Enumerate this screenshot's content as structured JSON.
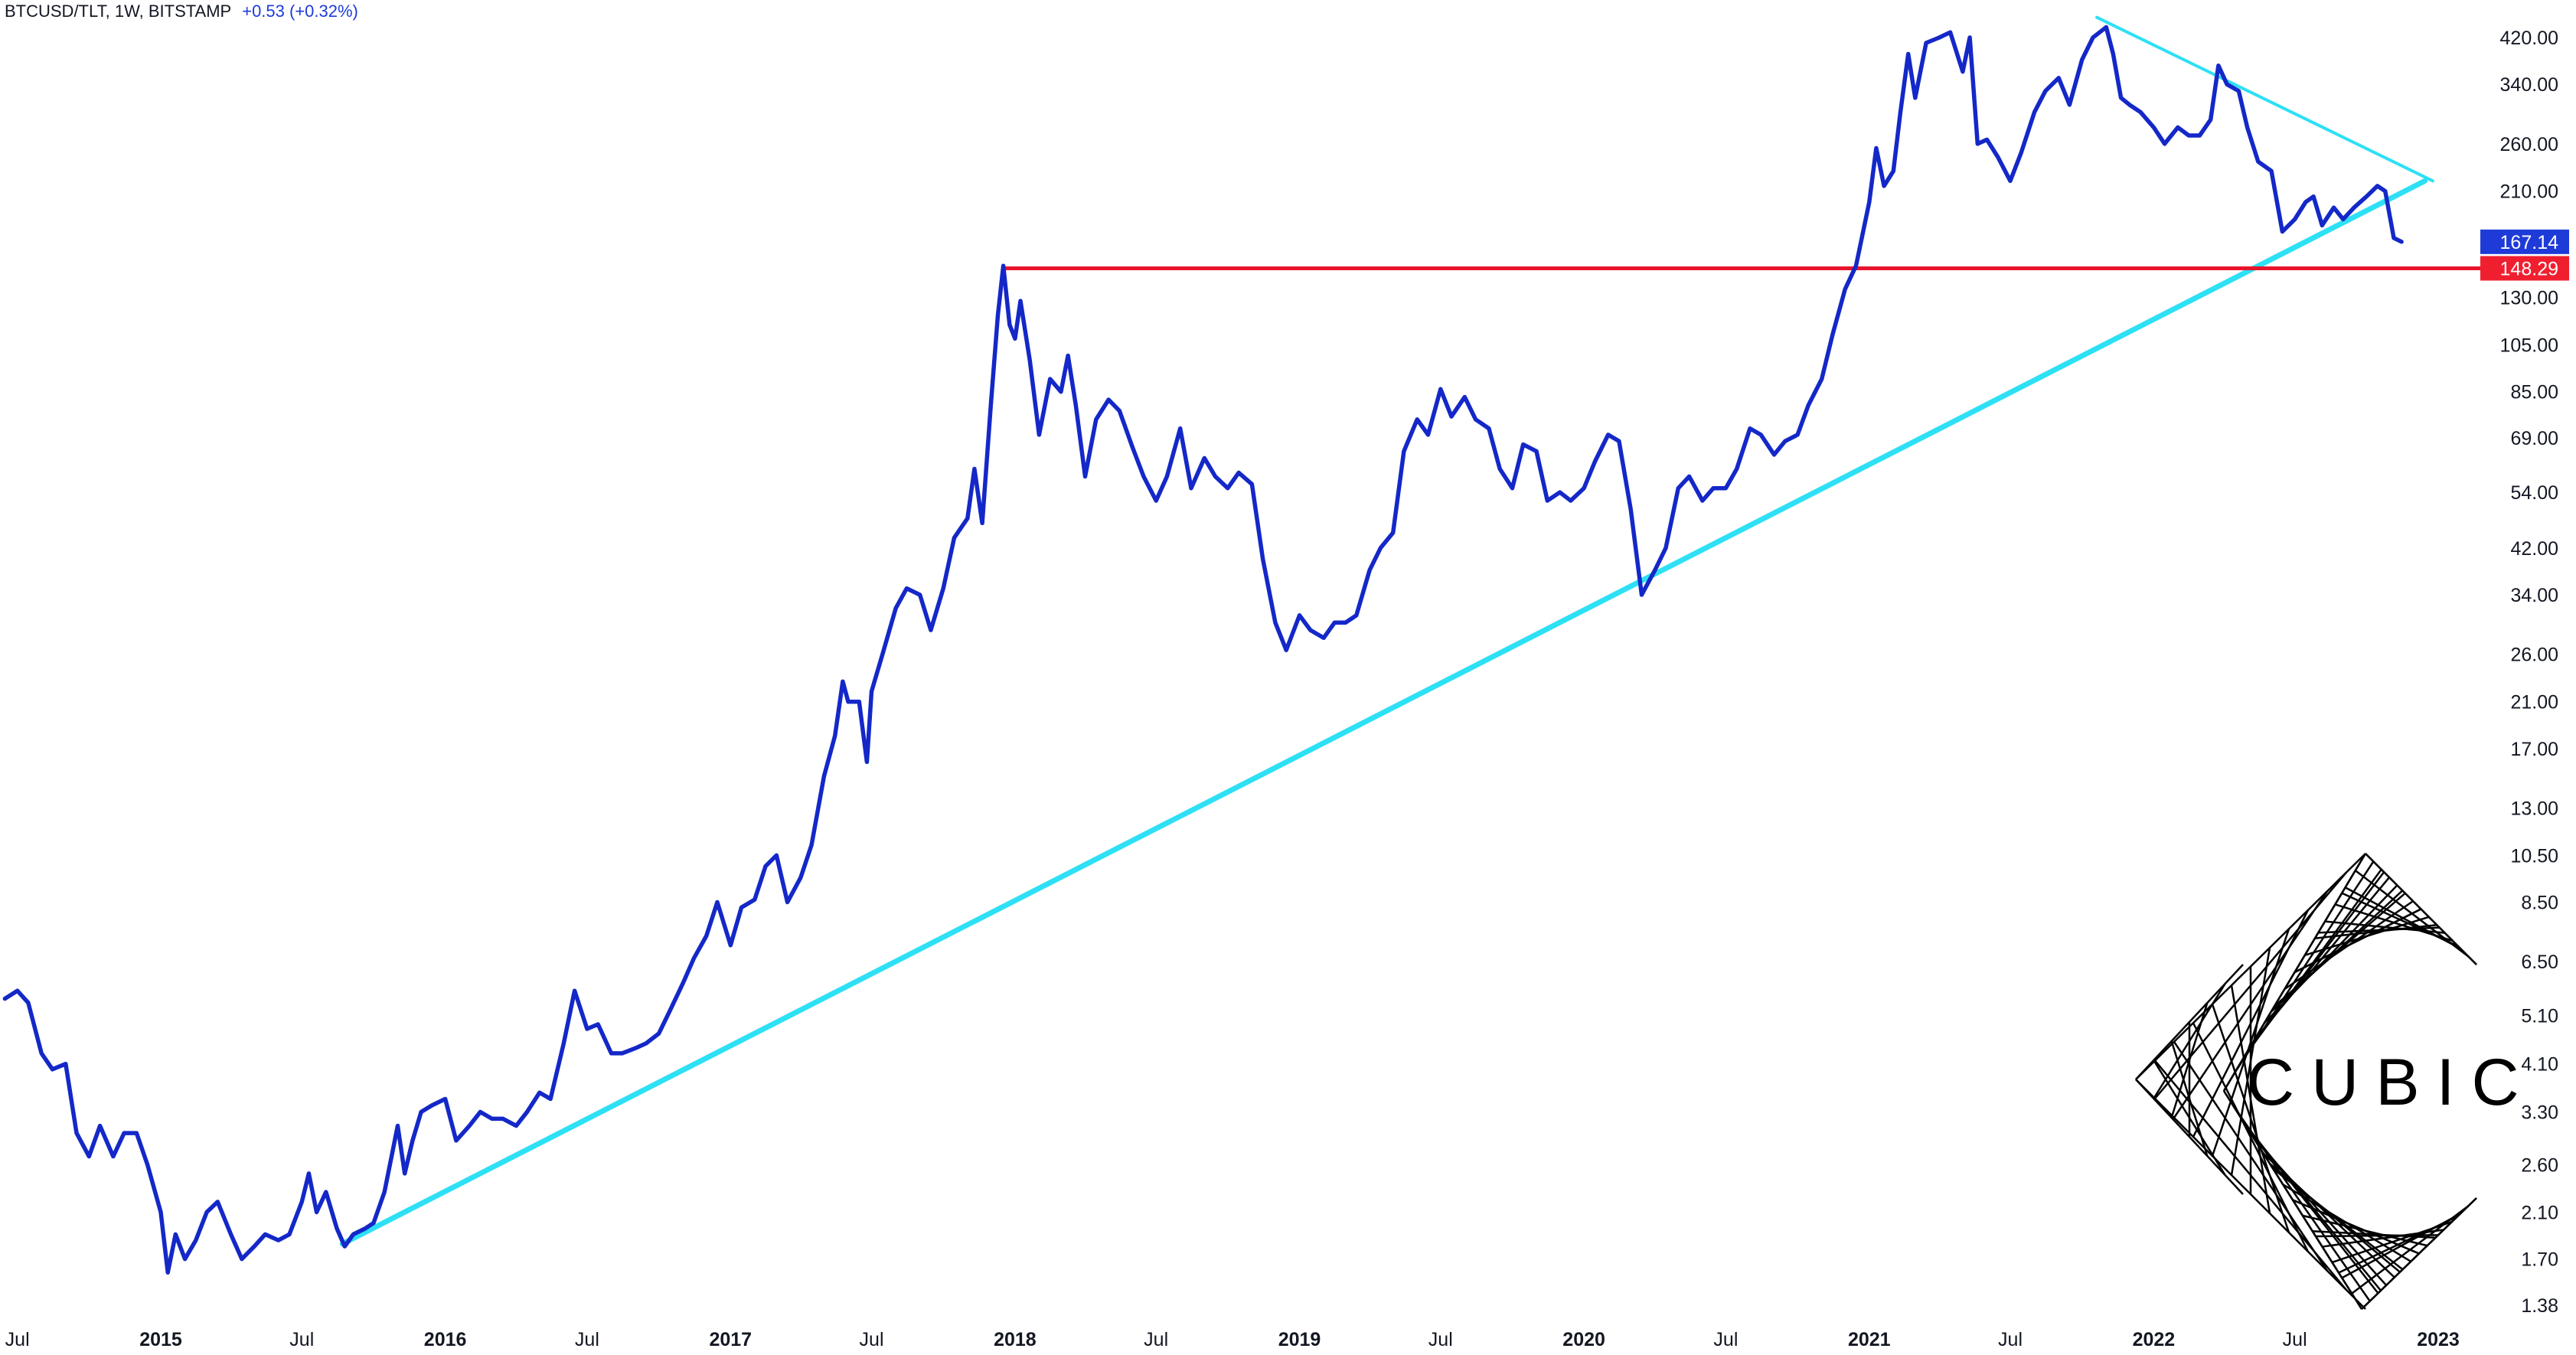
{
  "header": {
    "symbol": "BTCUSD/TLT, 1W, BITSTAMP",
    "change": "+0.53 (+0.32%)"
  },
  "logo": {
    "text": "CUBIC"
  },
  "colors": {
    "price_line": "#1428c8",
    "trendline": "#2ee0f5",
    "support": "#e8142d",
    "last_tag": "#1e3bd8",
    "support_tag": "#f01f2f"
  },
  "chart_data": {
    "type": "line",
    "scale": "log",
    "series": [
      {
        "values": [
          [
            "2014-06-15",
            5.5
          ],
          [
            "2014-07-01",
            5.7
          ],
          [
            "2014-07-15",
            5.4
          ],
          [
            "2014-08-01",
            4.3
          ],
          [
            "2014-08-15",
            4.0
          ],
          [
            "2014-09-01",
            4.1
          ],
          [
            "2014-09-15",
            3.0
          ],
          [
            "2014-10-01",
            2.7
          ],
          [
            "2014-10-15",
            3.1
          ],
          [
            "2014-11-01",
            2.7
          ],
          [
            "2014-11-15",
            3.0
          ],
          [
            "2014-12-01",
            3.0
          ],
          [
            "2014-12-15",
            2.6
          ],
          [
            "2015-01-01",
            2.1
          ],
          [
            "2015-01-10",
            1.6
          ],
          [
            "2015-01-20",
            1.9
          ],
          [
            "2015-02-01",
            1.7
          ],
          [
            "2015-02-15",
            1.85
          ],
          [
            "2015-03-01",
            2.1
          ],
          [
            "2015-03-15",
            2.2
          ],
          [
            "2015-04-01",
            1.9
          ],
          [
            "2015-04-15",
            1.7
          ],
          [
            "2015-05-01",
            1.8
          ],
          [
            "2015-05-15",
            1.9
          ],
          [
            "2015-06-01",
            1.85
          ],
          [
            "2015-06-15",
            1.9
          ],
          [
            "2015-07-01",
            2.2
          ],
          [
            "2015-07-10",
            2.5
          ],
          [
            "2015-07-20",
            2.1
          ],
          [
            "2015-08-01",
            2.3
          ],
          [
            "2015-08-15",
            1.95
          ],
          [
            "2015-08-25",
            1.8
          ],
          [
            "2015-09-05",
            1.9
          ],
          [
            "2015-09-20",
            1.95
          ],
          [
            "2015-10-01",
            2.0
          ],
          [
            "2015-10-15",
            2.3
          ],
          [
            "2015-11-01",
            3.1
          ],
          [
            "2015-11-10",
            2.5
          ],
          [
            "2015-11-20",
            2.9
          ],
          [
            "2015-12-01",
            3.3
          ],
          [
            "2015-12-15",
            3.4
          ],
          [
            "2016-01-01",
            3.5
          ],
          [
            "2016-01-15",
            2.9
          ],
          [
            "2016-02-01",
            3.1
          ],
          [
            "2016-02-15",
            3.3
          ],
          [
            "2016-03-01",
            3.2
          ],
          [
            "2016-03-15",
            3.2
          ],
          [
            "2016-04-01",
            3.1
          ],
          [
            "2016-04-15",
            3.3
          ],
          [
            "2016-05-01",
            3.6
          ],
          [
            "2016-05-15",
            3.5
          ],
          [
            "2016-06-01",
            4.5
          ],
          [
            "2016-06-15",
            5.7
          ],
          [
            "2016-07-01",
            4.8
          ],
          [
            "2016-07-15",
            4.9
          ],
          [
            "2016-08-01",
            4.3
          ],
          [
            "2016-08-15",
            4.3
          ],
          [
            "2016-09-01",
            4.4
          ],
          [
            "2016-09-15",
            4.5
          ],
          [
            "2016-10-01",
            4.7
          ],
          [
            "2016-10-15",
            5.2
          ],
          [
            "2016-11-01",
            5.9
          ],
          [
            "2016-11-15",
            6.6
          ],
          [
            "2016-12-01",
            7.3
          ],
          [
            "2016-12-15",
            8.5
          ],
          [
            "2017-01-01",
            7.0
          ],
          [
            "2017-01-15",
            8.3
          ],
          [
            "2017-02-01",
            8.6
          ],
          [
            "2017-02-15",
            10.0
          ],
          [
            "2017-03-01",
            10.5
          ],
          [
            "2017-03-15",
            8.5
          ],
          [
            "2017-04-01",
            9.5
          ],
          [
            "2017-04-15",
            11.0
          ],
          [
            "2017-05-01",
            15.0
          ],
          [
            "2017-05-15",
            18.0
          ],
          [
            "2017-05-25",
            23.0
          ],
          [
            "2017-06-01",
            21.0
          ],
          [
            "2017-06-15",
            21.0
          ],
          [
            "2017-06-25",
            16.0
          ],
          [
            "2017-07-01",
            22.0
          ],
          [
            "2017-07-15",
            26.0
          ],
          [
            "2017-08-01",
            32.0
          ],
          [
            "2017-08-15",
            35.0
          ],
          [
            "2017-09-01",
            34.0
          ],
          [
            "2017-09-15",
            29.0
          ],
          [
            "2017-10-01",
            35.0
          ],
          [
            "2017-10-15",
            44.0
          ],
          [
            "2017-11-01",
            48.0
          ],
          [
            "2017-11-10",
            60.0
          ],
          [
            "2017-11-20",
            47.0
          ],
          [
            "2017-12-01",
            80.0
          ],
          [
            "2017-12-10",
            120.0
          ],
          [
            "2017-12-17",
            150.0
          ],
          [
            "2017-12-25",
            115.0
          ],
          [
            "2018-01-01",
            108.0
          ],
          [
            "2018-01-08",
            128.0
          ],
          [
            "2018-01-20",
            98.0
          ],
          [
            "2018-02-01",
            70.0
          ],
          [
            "2018-02-15",
            90.0
          ],
          [
            "2018-03-01",
            85.0
          ],
          [
            "2018-03-10",
            100.0
          ],
          [
            "2018-03-20",
            80.0
          ],
          [
            "2018-04-01",
            58.0
          ],
          [
            "2018-04-15",
            75.0
          ],
          [
            "2018-05-01",
            82.0
          ],
          [
            "2018-05-15",
            78.0
          ],
          [
            "2018-06-01",
            66.0
          ],
          [
            "2018-06-15",
            58.0
          ],
          [
            "2018-07-01",
            52.0
          ],
          [
            "2018-07-15",
            58.0
          ],
          [
            "2018-08-01",
            72.0
          ],
          [
            "2018-08-15",
            55.0
          ],
          [
            "2018-09-01",
            63.0
          ],
          [
            "2018-09-15",
            58.0
          ],
          [
            "2018-10-01",
            55.0
          ],
          [
            "2018-10-15",
            59.0
          ],
          [
            "2018-11-01",
            56.0
          ],
          [
            "2018-11-15",
            40.0
          ],
          [
            "2018-12-01",
            30.0
          ],
          [
            "2018-12-15",
            26.5
          ],
          [
            "2019-01-01",
            31.0
          ],
          [
            "2019-01-15",
            29.0
          ],
          [
            "2019-02-01",
            28.0
          ],
          [
            "2019-02-15",
            30.0
          ],
          [
            "2019-03-01",
            30.0
          ],
          [
            "2019-03-15",
            31.0
          ],
          [
            "2019-04-01",
            38.0
          ],
          [
            "2019-04-15",
            42.0
          ],
          [
            "2019-05-01",
            45.0
          ],
          [
            "2019-05-15",
            65.0
          ],
          [
            "2019-06-01",
            75.0
          ],
          [
            "2019-06-15",
            70.0
          ],
          [
            "2019-07-01",
            86.0
          ],
          [
            "2019-07-15",
            76.0
          ],
          [
            "2019-08-01",
            83.0
          ],
          [
            "2019-08-15",
            75.0
          ],
          [
            "2019-09-01",
            72.0
          ],
          [
            "2019-09-15",
            60.0
          ],
          [
            "2019-10-01",
            55.0
          ],
          [
            "2019-10-15",
            67.0
          ],
          [
            "2019-11-01",
            65.0
          ],
          [
            "2019-11-15",
            52.0
          ],
          [
            "2019-12-01",
            54.0
          ],
          [
            "2019-12-15",
            52.0
          ],
          [
            "2020-01-01",
            55.0
          ],
          [
            "2020-01-15",
            62.0
          ],
          [
            "2020-02-01",
            70.0
          ],
          [
            "2020-02-15",
            68.0
          ],
          [
            "2020-03-01",
            50.0
          ],
          [
            "2020-03-15",
            34.0
          ],
          [
            "2020-04-01",
            38.0
          ],
          [
            "2020-04-15",
            42.0
          ],
          [
            "2020-05-01",
            55.0
          ],
          [
            "2020-05-15",
            58.0
          ],
          [
            "2020-06-01",
            52.0
          ],
          [
            "2020-06-15",
            55.0
          ],
          [
            "2020-07-01",
            55.0
          ],
          [
            "2020-07-15",
            60.0
          ],
          [
            "2020-08-01",
            72.0
          ],
          [
            "2020-08-15",
            70.0
          ],
          [
            "2020-09-01",
            64.0
          ],
          [
            "2020-09-15",
            68.0
          ],
          [
            "2020-10-01",
            70.0
          ],
          [
            "2020-10-15",
            80.0
          ],
          [
            "2020-11-01",
            90.0
          ],
          [
            "2020-11-15",
            110.0
          ],
          [
            "2020-12-01",
            135.0
          ],
          [
            "2020-12-15",
            150.0
          ],
          [
            "2021-01-01",
            200.0
          ],
          [
            "2021-01-10",
            255.0
          ],
          [
            "2021-01-20",
            215.0
          ],
          [
            "2021-02-01",
            230.0
          ],
          [
            "2021-02-10",
            300.0
          ],
          [
            "2021-02-20",
            390.0
          ],
          [
            "2021-03-01",
            320.0
          ],
          [
            "2021-03-15",
            410.0
          ],
          [
            "2021-04-01",
            420.0
          ],
          [
            "2021-04-15",
            430.0
          ],
          [
            "2021-05-01",
            360.0
          ],
          [
            "2021-05-10",
            420.0
          ],
          [
            "2021-05-20",
            260.0
          ],
          [
            "2021-06-01",
            265.0
          ],
          [
            "2021-06-15",
            245.0
          ],
          [
            "2021-07-01",
            220.0
          ],
          [
            "2021-07-15",
            250.0
          ],
          [
            "2021-08-01",
            300.0
          ],
          [
            "2021-08-15",
            330.0
          ],
          [
            "2021-09-01",
            350.0
          ],
          [
            "2021-09-15",
            310.0
          ],
          [
            "2021-10-01",
            380.0
          ],
          [
            "2021-10-15",
            420.0
          ],
          [
            "2021-11-01",
            440.0
          ],
          [
            "2021-11-10",
            390.0
          ],
          [
            "2021-11-20",
            320.0
          ],
          [
            "2021-12-01",
            310.0
          ],
          [
            "2021-12-15",
            300.0
          ],
          [
            "2022-01-01",
            280.0
          ],
          [
            "2022-01-15",
            260.0
          ],
          [
            "2022-02-01",
            280.0
          ],
          [
            "2022-02-15",
            270.0
          ],
          [
            "2022-03-01",
            270.0
          ],
          [
            "2022-03-15",
            290.0
          ],
          [
            "2022-03-25",
            370.0
          ],
          [
            "2022-04-05",
            340.0
          ],
          [
            "2022-04-20",
            330.0
          ],
          [
            "2022-05-01",
            280.0
          ],
          [
            "2022-05-15",
            240.0
          ],
          [
            "2022-06-01",
            230.0
          ],
          [
            "2022-06-15",
            175.0
          ],
          [
            "2022-07-01",
            185.0
          ],
          [
            "2022-07-15",
            200.0
          ],
          [
            "2022-07-25",
            205.0
          ],
          [
            "2022-08-05",
            180.0
          ],
          [
            "2022-08-20",
            195.0
          ],
          [
            "2022-09-01",
            185.0
          ],
          [
            "2022-09-15",
            195.0
          ],
          [
            "2022-10-01",
            205.0
          ],
          [
            "2022-10-15",
            215.0
          ],
          [
            "2022-10-25",
            210.0
          ],
          [
            "2022-11-05",
            170.0
          ],
          [
            "2022-11-15",
            167.14
          ]
        ]
      }
    ],
    "support_line": {
      "y": 148.29,
      "from": "2017-12-17"
    },
    "trendlines": [
      {
        "from": [
          "2015-08-22",
          1.82
        ],
        "to": [
          "2022-12-15",
          220.0
        ]
      },
      {
        "from": [
          "2021-10-20",
          460.0
        ],
        "to": [
          "2022-12-25",
          220.0
        ]
      }
    ],
    "x_ticks": [
      {
        "date": "2014-07-01",
        "label": "Jul",
        "year": false
      },
      {
        "date": "2015-01-01",
        "label": "2015",
        "year": true
      },
      {
        "date": "2015-07-01",
        "label": "Jul",
        "year": false
      },
      {
        "date": "2016-01-01",
        "label": "2016",
        "year": true
      },
      {
        "date": "2016-07-01",
        "label": "Jul",
        "year": false
      },
      {
        "date": "2017-01-01",
        "label": "2017",
        "year": true
      },
      {
        "date": "2017-07-01",
        "label": "Jul",
        "year": false
      },
      {
        "date": "2018-01-01",
        "label": "2018",
        "year": true
      },
      {
        "date": "2018-07-01",
        "label": "Jul",
        "year": false
      },
      {
        "date": "2019-01-01",
        "label": "2019",
        "year": true
      },
      {
        "date": "2019-07-01",
        "label": "Jul",
        "year": false
      },
      {
        "date": "2020-01-01",
        "label": "2020",
        "year": true
      },
      {
        "date": "2020-07-01",
        "label": "Jul",
        "year": false
      },
      {
        "date": "2021-01-01",
        "label": "2021",
        "year": true
      },
      {
        "date": "2021-07-01",
        "label": "Jul",
        "year": false
      },
      {
        "date": "2022-01-01",
        "label": "2022",
        "year": true
      },
      {
        "date": "2022-07-01",
        "label": "Jul",
        "year": false
      },
      {
        "date": "2023-01-01",
        "label": "2023",
        "year": true
      }
    ],
    "y_ticks": [
      1.38,
      1.7,
      2.1,
      2.6,
      3.3,
      4.1,
      5.1,
      6.5,
      8.5,
      10.5,
      13.0,
      17.0,
      21.0,
      26.0,
      34.0,
      42.0,
      54.0,
      69.0,
      85.0,
      105.0,
      130.0,
      210.0,
      260.0,
      340.0,
      420.0
    ],
    "y_tick_labels": [
      "1.38",
      "1.70",
      "2.10",
      "2.60",
      "3.30",
      "4.10",
      "5.10",
      "6.50",
      "8.50",
      "10.50",
      "13.00",
      "17.00",
      "21.00",
      "26.00",
      "34.00",
      "42.00",
      "54.00",
      "69.00",
      "85.00",
      "105.00",
      "130.00",
      "210.00",
      "260.00",
      "340.00",
      "420.00"
    ],
    "last_value": {
      "value": 167.14,
      "label": "167.14"
    },
    "support_value": {
      "value": 148.29,
      "label": "148.29"
    }
  }
}
